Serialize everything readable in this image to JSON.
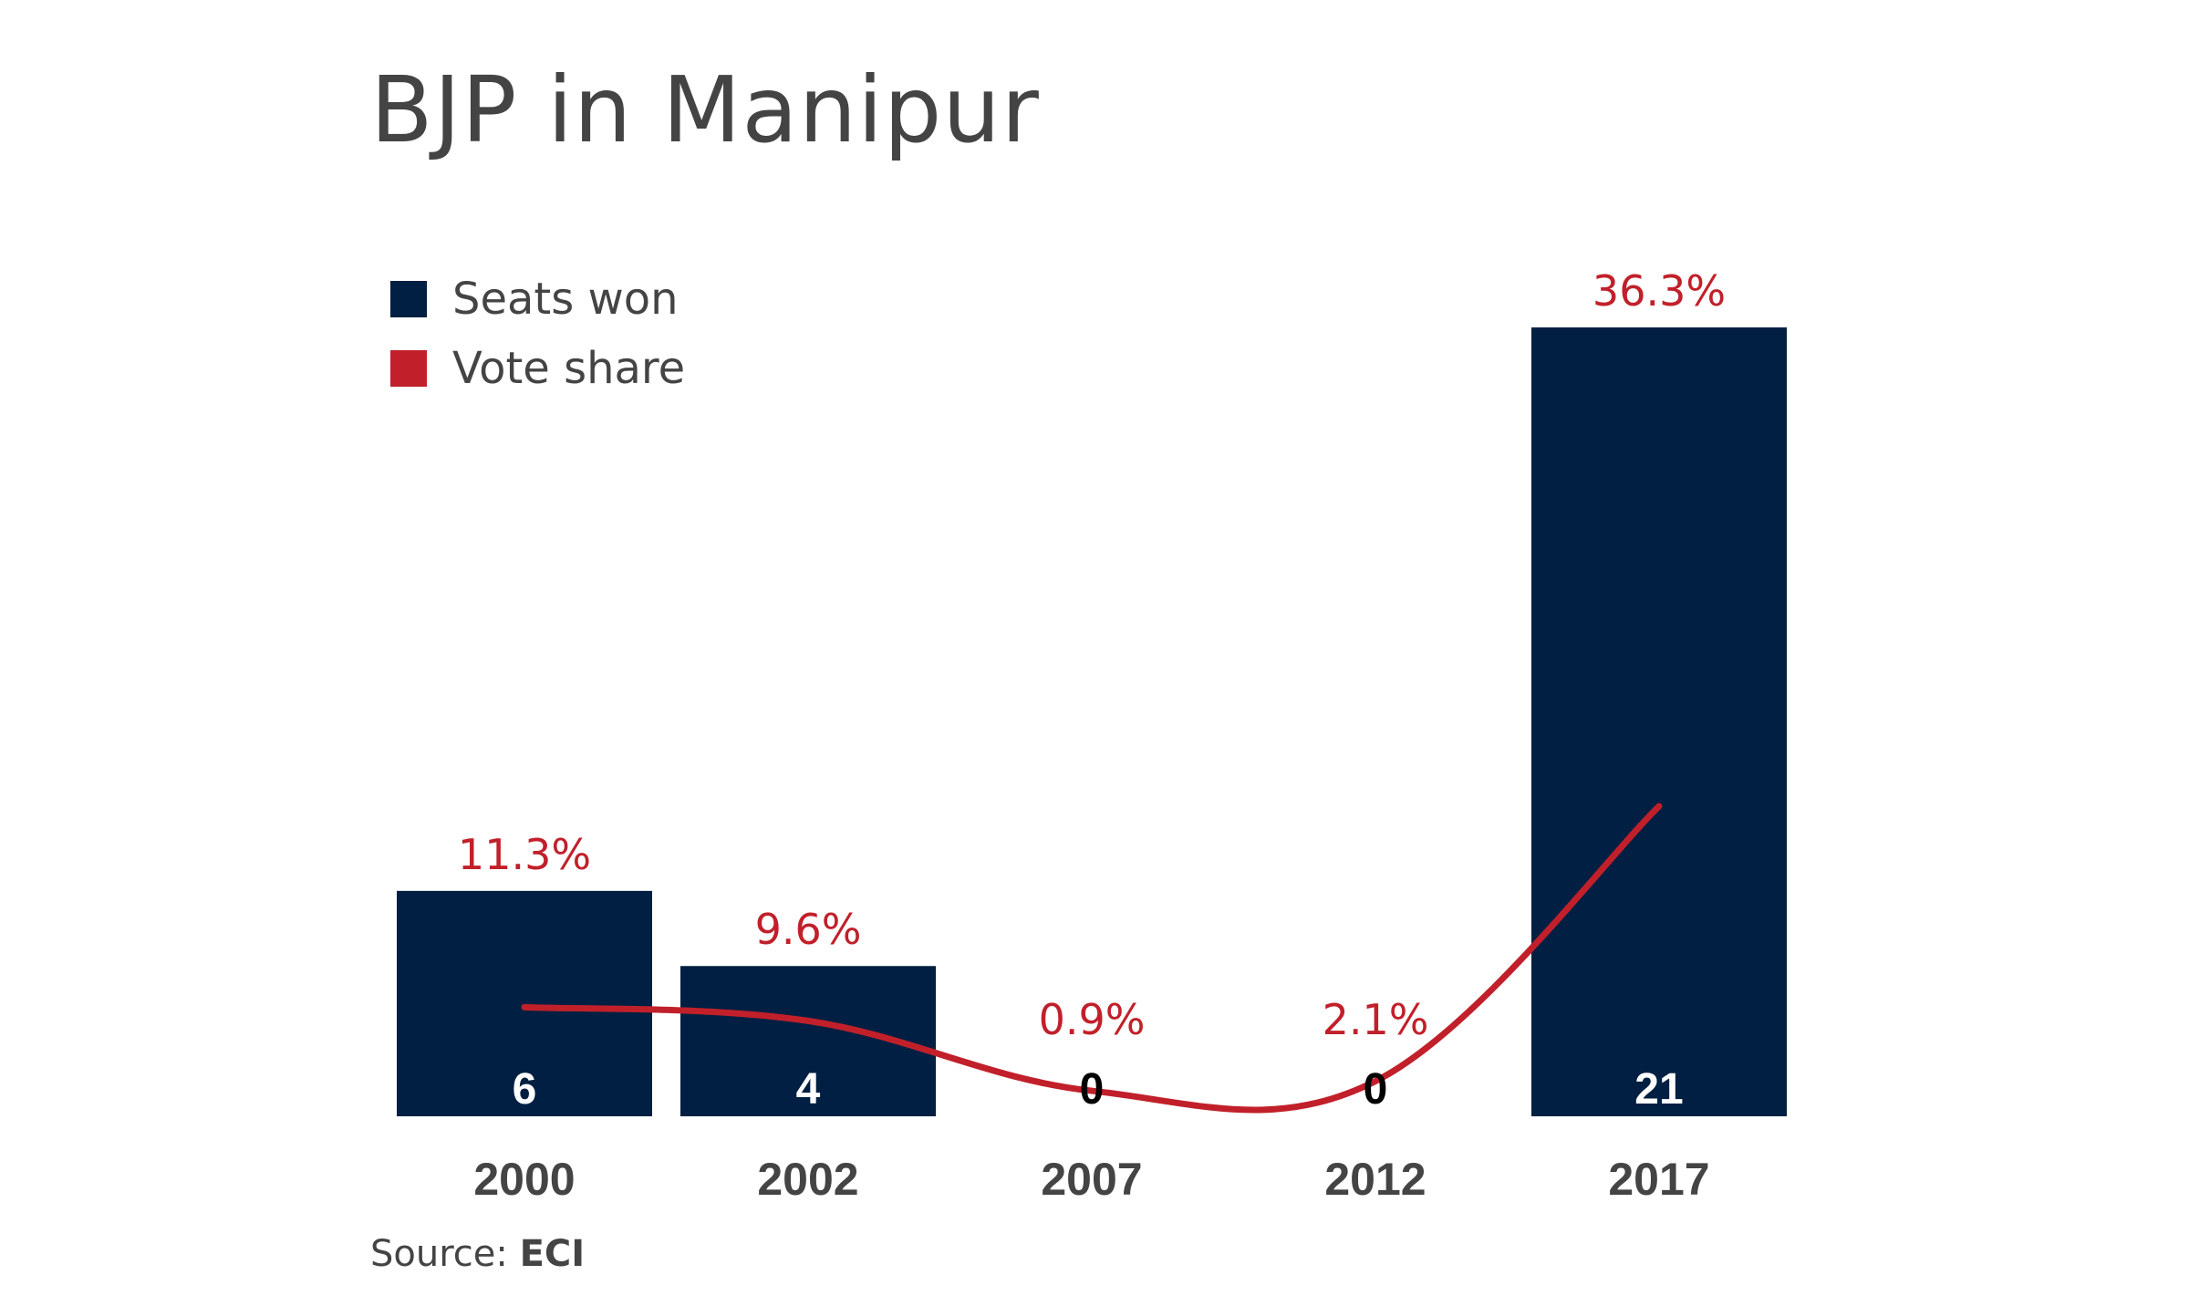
{
  "title": "BJP in Manipur",
  "legend": [
    {
      "label": "Seats won",
      "color": "#001f42"
    },
    {
      "label": "Vote share",
      "color": "#c1202a"
    }
  ],
  "source": {
    "label": "Source:",
    "value": "ECI"
  },
  "chart_data": {
    "type": "bar",
    "title": "BJP in Manipur",
    "categories": [
      "2000",
      "2002",
      "2007",
      "2012",
      "2017"
    ],
    "series": [
      {
        "name": "Seats won",
        "type": "bar",
        "color": "#001f42",
        "values": [
          6,
          4,
          0,
          0,
          21
        ],
        "labels": [
          "6",
          "4",
          "0",
          "0",
          "21"
        ]
      },
      {
        "name": "Vote share",
        "type": "line",
        "color": "#c1202a",
        "values": [
          11.3,
          9.6,
          0.9,
          2.1,
          36.3
        ],
        "labels": [
          "11.3%",
          "9.6%",
          "0.9%",
          "2.1%",
          "36.3%"
        ]
      }
    ],
    "legend_position": "top-left",
    "grid": false
  }
}
